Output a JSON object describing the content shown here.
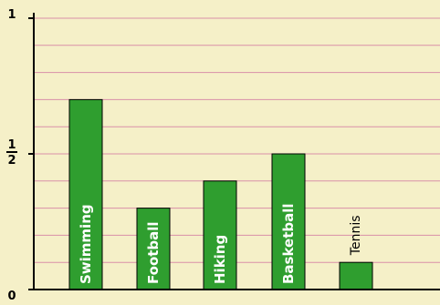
{
  "colors": {
    "background": "#f5f0c8",
    "bar": "#2f9e2f",
    "bar_stroke": "#000000",
    "grid": "#d98fa8",
    "axis": "#000000"
  },
  "chart_data": {
    "type": "bar",
    "categories": [
      "Swimming",
      "Football",
      "Hiking",
      "Basketball",
      "Tennis"
    ],
    "values": [
      0.7,
      0.3,
      0.4,
      0.5,
      0.1
    ],
    "ylim": [
      0,
      1
    ],
    "y_ticks": [
      {
        "value": 0,
        "label": "0"
      },
      {
        "value": 0.5,
        "numerator": "1",
        "denominator": "2"
      },
      {
        "value": 1,
        "label": "1"
      }
    ],
    "grid": true,
    "grid_step": 0.1,
    "label_style": [
      "white-bold",
      "white-bold",
      "white-bold",
      "white-bold",
      "black-above"
    ]
  }
}
